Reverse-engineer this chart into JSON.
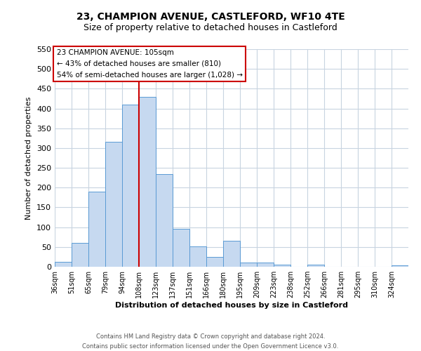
{
  "title": "23, CHAMPION AVENUE, CASTLEFORD, WF10 4TE",
  "subtitle": "Size of property relative to detached houses in Castleford",
  "xlabel": "Distribution of detached houses by size in Castleford",
  "ylabel": "Number of detached properties",
  "bin_labels": [
    "36sqm",
    "51sqm",
    "65sqm",
    "79sqm",
    "94sqm",
    "108sqm",
    "123sqm",
    "137sqm",
    "151sqm",
    "166sqm",
    "180sqm",
    "195sqm",
    "209sqm",
    "223sqm",
    "238sqm",
    "252sqm",
    "266sqm",
    "281sqm",
    "295sqm",
    "310sqm",
    "324sqm"
  ],
  "bar_heights": [
    13,
    60,
    190,
    315,
    410,
    430,
    235,
    95,
    52,
    25,
    65,
    10,
    10,
    5,
    0,
    5,
    0,
    0,
    0,
    0,
    3
  ],
  "bar_color": "#c6d9f0",
  "bar_edge_color": "#5a9bd4",
  "ylim": [
    0,
    550
  ],
  "yticks": [
    0,
    50,
    100,
    150,
    200,
    250,
    300,
    350,
    400,
    450,
    500,
    550
  ],
  "property_line_x": 5,
  "property_line_color": "#cc0000",
  "annotation_text_line1": "23 CHAMPION AVENUE: 105sqm",
  "annotation_text_line2": "← 43% of detached houses are smaller (810)",
  "annotation_text_line3": "54% of semi-detached houses are larger (1,028) →",
  "annotation_box_color": "#ffffff",
  "annotation_box_edge": "#cc0000",
  "footer_line1": "Contains HM Land Registry data © Crown copyright and database right 2024.",
  "footer_line2": "Contains public sector information licensed under the Open Government Licence v3.0.",
  "background_color": "#ffffff",
  "grid_color": "#c8d4e0"
}
